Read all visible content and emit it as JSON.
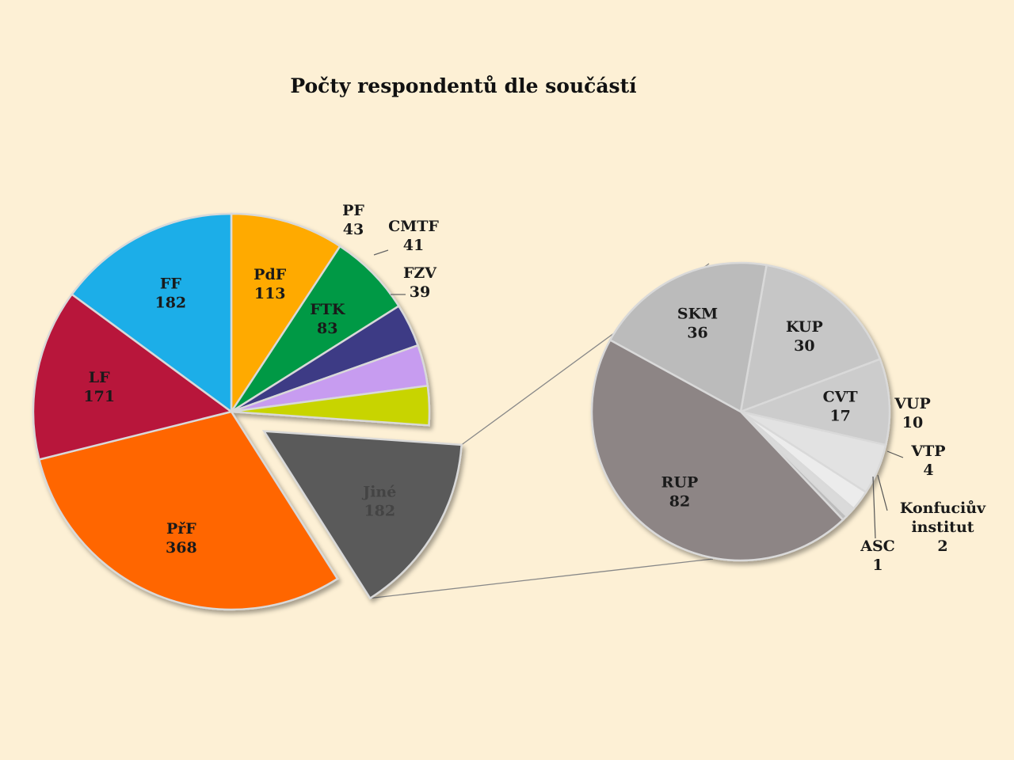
{
  "chart_data": {
    "type": "pie",
    "title": "Počty respondentů dle součástí",
    "main": {
      "slices": [
        {
          "label": "PdF",
          "value": 113,
          "color": "#ffaa00"
        },
        {
          "label": "FTK",
          "value": 83,
          "color": "#009944"
        },
        {
          "label": "PF",
          "value": 43,
          "color": "#3d3a85"
        },
        {
          "label": "CMTF",
          "value": 41,
          "color": "#c79cf0"
        },
        {
          "label": "FZV",
          "value": 39,
          "color": "#c8d400"
        },
        {
          "label": "Jiné",
          "value": 182,
          "color": "#5a5a5a"
        },
        {
          "label": "PřF",
          "value": 368,
          "color": "#ff6600"
        },
        {
          "label": "LF",
          "value": 171,
          "color": "#b8153a"
        },
        {
          "label": "FF",
          "value": 182,
          "color": "#1aaee8"
        }
      ]
    },
    "detail": {
      "of": "Jiné",
      "slices": [
        {
          "label": "KUP",
          "value": 30,
          "color": "#c6c6c6"
        },
        {
          "label": "CVT",
          "value": 17,
          "color": "#cccccc"
        },
        {
          "label": "VUP",
          "value": 10,
          "color": "#e2e2e2"
        },
        {
          "label": "VTP",
          "value": 4,
          "color": "#ececec"
        },
        {
          "label": "Konfuciův institut",
          "value": 2,
          "color": "#dadada"
        },
        {
          "label": "ASC",
          "value": 1,
          "color": "#bdbdbd"
        },
        {
          "label": "RUP",
          "value": 82,
          "color": "#8d8585"
        },
        {
          "label": "SKM",
          "value": 36,
          "color": "#bbbbbb"
        }
      ]
    }
  }
}
